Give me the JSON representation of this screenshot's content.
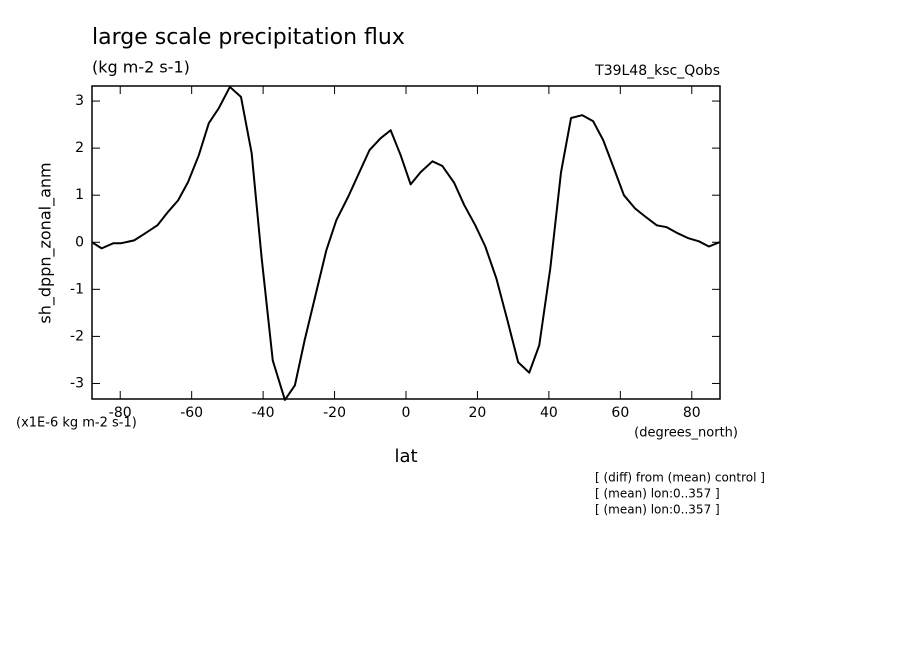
{
  "chart_data": {
    "type": "line",
    "title": "large scale precipitation flux",
    "subtitle": "(kg m-2 s-1)",
    "run_label": "T39L48_ksc_Qobs",
    "y_label": "sh_dppn_zonal_anm",
    "x_label": "lat",
    "y_units": "(x1E-6 kg m-2 s-1)",
    "x_units": "(degrees_north)",
    "notes": [
      "[ (diff) from (mean) control ]",
      "[ (mean) lon:0..357 ]",
      "[ (mean) lon:0..357 ]"
    ],
    "x": [
      -87.9,
      -85.2,
      -81.9,
      -79.7,
      -76.1,
      -73.0,
      -69.6,
      -66.9,
      -63.8,
      -61.0,
      -58.0,
      -55.2,
      -52.4,
      -49.3,
      -46.2,
      -43.2,
      -40.4,
      -37.3,
      -33.9,
      -31.1,
      -28.4,
      -25.0,
      -22.3,
      -19.5,
      -16.1,
      -13.4,
      -10.2,
      -7.1,
      -4.3,
      -1.5,
      1.3,
      4.1,
      7.4,
      10.2,
      13.5,
      16.3,
      19.4,
      22.2,
      25.3,
      28.4,
      31.4,
      34.5,
      37.3,
      40.4,
      43.4,
      46.2,
      49.3,
      52.4,
      55.2,
      58.2,
      61.0,
      64.1,
      66.9,
      70.2,
      73.0,
      76.1,
      78.9,
      82.0,
      84.8,
      87.7
    ],
    "series": [
      {
        "name": "sh_dppn_zonal_anm",
        "color": "#000000",
        "values": [
          0,
          -0.13,
          -0.02,
          -0.02,
          0.04,
          0.19,
          0.36,
          0.62,
          0.89,
          1.28,
          1.85,
          2.53,
          2.85,
          3.3,
          3.09,
          1.89,
          -0.34,
          -2.51,
          -3.35,
          -3.04,
          -2.09,
          -1.02,
          -0.17,
          0.47,
          0.98,
          1.43,
          1.96,
          2.21,
          2.38,
          1.85,
          1.23,
          1.49,
          1.72,
          1.62,
          1.26,
          0.79,
          0.36,
          -0.09,
          -0.77,
          -1.66,
          -2.55,
          -2.77,
          -2.19,
          -0.55,
          1.49,
          2.64,
          2.7,
          2.57,
          2.17,
          1.57,
          1.0,
          0.72,
          0.55,
          0.36,
          0.32,
          0.19,
          0.09,
          0.02,
          -0.09,
          0
        ]
      }
    ],
    "xlim": [
      -87.9,
      87.9
    ],
    "ylim": [
      -3.33,
      3.32
    ],
    "xticks": [
      -80,
      -60,
      -40,
      -20,
      0,
      20,
      40,
      60,
      80
    ],
    "yticks": [
      -3,
      -2,
      -1,
      0,
      1,
      2,
      3
    ]
  }
}
